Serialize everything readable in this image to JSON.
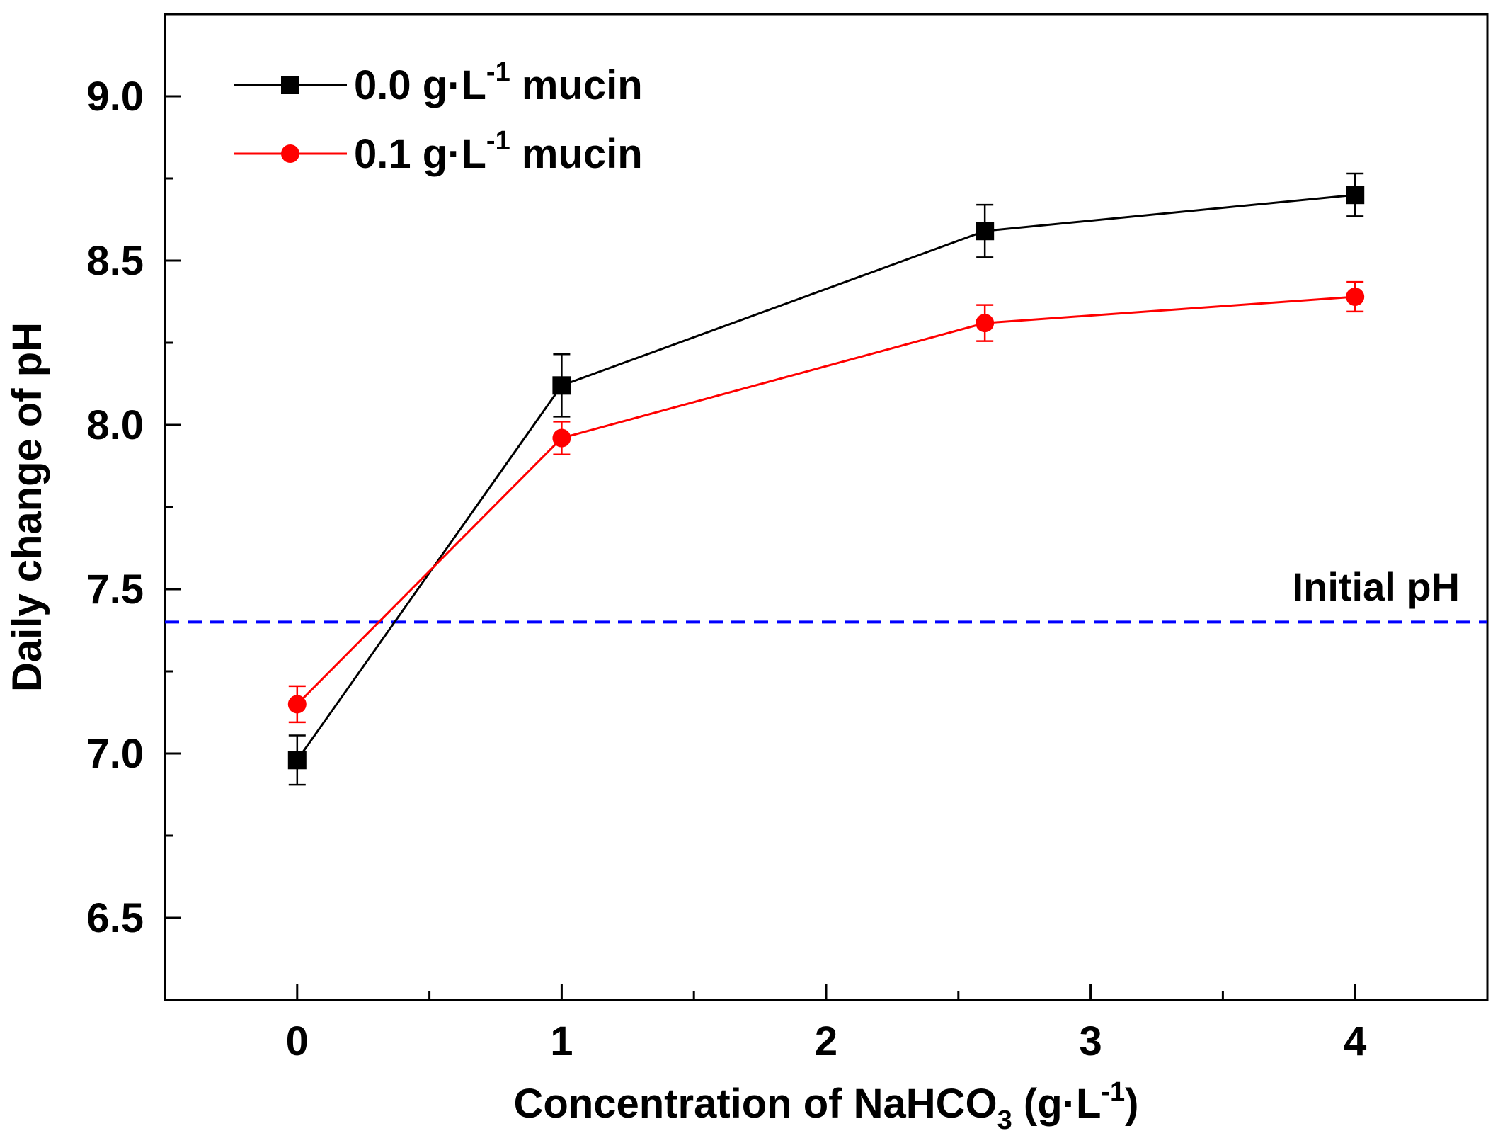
{
  "chart_data": {
    "type": "line",
    "xlabel": "Concentration of NaHCO",
    "xlabel_sub": "3",
    "xlabel_unit_pre": " (g·L",
    "xlabel_unit_sup": "-1",
    "xlabel_unit_post": ")",
    "ylabel": "Daily change of pH",
    "xlim": [
      -0.5,
      4.5
    ],
    "ylim": [
      6.25,
      9.25
    ],
    "x_ticks": [
      0,
      1,
      2,
      3,
      4
    ],
    "x_tick_labels": [
      "0",
      "1",
      "2",
      "3",
      "4"
    ],
    "y_ticks": [
      6.5,
      7.0,
      7.5,
      8.0,
      8.5,
      9.0
    ],
    "y_tick_labels": [
      "6.5",
      "7.0",
      "7.5",
      "8.0",
      "8.5",
      "9.0"
    ],
    "grid": false,
    "legend_position": "top-left",
    "series": [
      {
        "name_main": "0.0 g·L",
        "name_sup": "-1",
        "name_tail": " mucin",
        "color": "#000000",
        "marker": "square",
        "x": [
          0,
          1,
          2.6,
          4
        ],
        "values": [
          6.98,
          8.12,
          8.59,
          8.7
        ],
        "errors": [
          0.075,
          0.095,
          0.08,
          0.065
        ]
      },
      {
        "name_main": "0.1 g·L",
        "name_sup": "-1",
        "name_tail": " mucin",
        "color": "#ff0000",
        "marker": "circle",
        "x": [
          0,
          1,
          2.6,
          4
        ],
        "values": [
          7.15,
          7.96,
          8.31,
          8.39
        ],
        "errors": [
          0.055,
          0.05,
          0.055,
          0.045
        ]
      }
    ],
    "reference_line": {
      "label": "Initial pH",
      "value": 7.4,
      "color": "#0000ff"
    }
  }
}
